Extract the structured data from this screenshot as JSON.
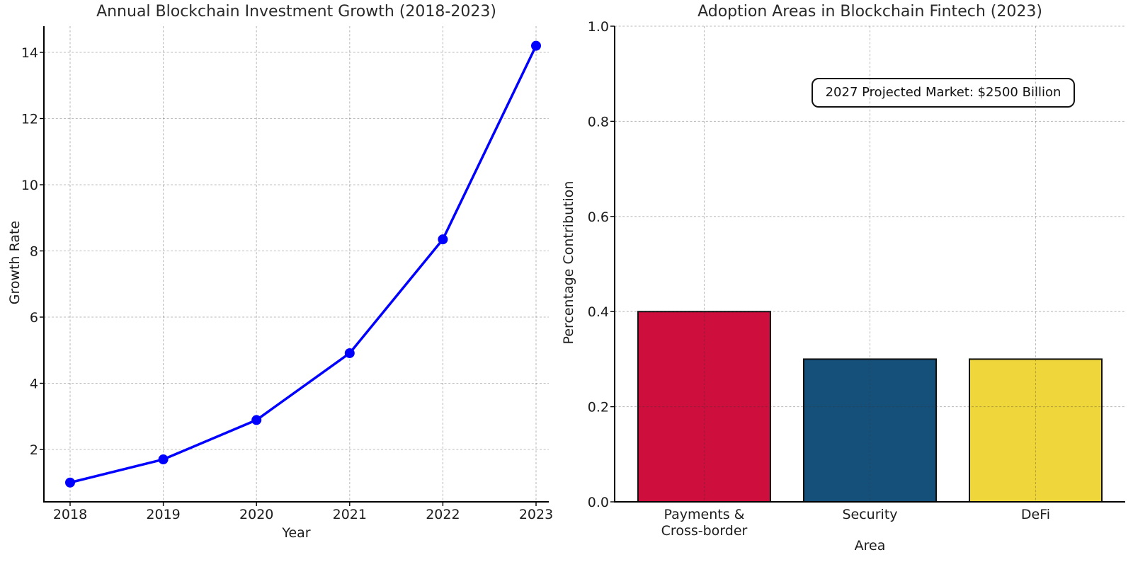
{
  "figure": {
    "background": "#ffffff",
    "text_color": "#1c1c1c",
    "spine_color": "#000000",
    "grid_color": "rgba(50,50,50,0.32)"
  },
  "chart_data": [
    {
      "type": "line",
      "title": "Annual Blockchain Investment Growth (2018-2023)",
      "xlabel": "Year",
      "ylabel": "Growth Rate",
      "x": [
        2018,
        2019,
        2020,
        2021,
        2022,
        2023
      ],
      "x_tick_labels": [
        "2018",
        "2019",
        "2020",
        "2021",
        "2022",
        "2023"
      ],
      "values": [
        1.0,
        1.7,
        2.89,
        4.91,
        8.35,
        14.2
      ],
      "yticks": [
        2,
        4,
        6,
        8,
        10,
        12,
        14
      ],
      "ytick_labels": [
        "2",
        "4",
        "6",
        "8",
        "10",
        "12",
        "14"
      ],
      "ylim": [
        0.42,
        14.79
      ],
      "line_color": "#0000ff",
      "marker": "circle",
      "marker_color": "#0000ff",
      "grid": true,
      "legend_position": "none"
    },
    {
      "type": "bar",
      "title": "Adoption Areas in Blockchain Fintech (2023)",
      "xlabel": "Area",
      "ylabel": "Percentage Contribution",
      "categories": [
        "Payments &\nCross-border",
        "Security",
        "DeFi"
      ],
      "values": [
        0.4,
        0.3,
        0.3
      ],
      "bar_colors": [
        "#ce0e3d",
        "#15507b",
        "#efd73b"
      ],
      "bar_edge_color": "#111111",
      "yticks": [
        0.0,
        0.2,
        0.4,
        0.6,
        0.8,
        1.0
      ],
      "ytick_labels": [
        "0.0",
        "0.2",
        "0.4",
        "0.6",
        "0.8",
        "1.0"
      ],
      "ylim": [
        0.0,
        1.0
      ],
      "grid": true,
      "annotation": {
        "text": "2027 Projected Market: $2500 Billion",
        "border_color": "#111111",
        "background": "#ffffff"
      }
    }
  ]
}
